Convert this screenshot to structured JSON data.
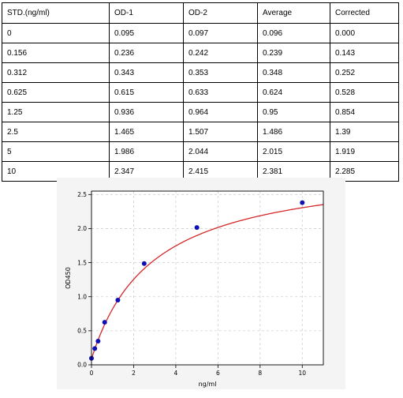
{
  "table": {
    "headers": [
      "STD.(ng/ml)",
      "OD-1",
      "OD-2",
      "Average",
      "Corrected"
    ],
    "rows": [
      [
        "0",
        "0.095",
        "0.097",
        "0.096",
        "0.000"
      ],
      [
        "0.156",
        "0.236",
        "0.242",
        "0.239",
        "0.143"
      ],
      [
        "0.312",
        "0.343",
        "0.353",
        "0.348",
        "0.252"
      ],
      [
        "0.625",
        "0.615",
        "0.633",
        "0.624",
        "0.528"
      ],
      [
        "1.25",
        "0.936",
        "0.964",
        "0.95",
        "0.854"
      ],
      [
        "2.5",
        "1.465",
        "1.507",
        "1.486",
        "1.39"
      ],
      [
        "5",
        "1.986",
        "2.044",
        "2.015",
        "1.919"
      ],
      [
        "10",
        "2.347",
        "2.415",
        "2.381",
        "2.285"
      ]
    ]
  },
  "chart_data": {
    "type": "scatter",
    "xlabel": "ng/ml",
    "ylabel": "OD450",
    "xlim": [
      0,
      11
    ],
    "ylim": [
      0,
      2.55
    ],
    "xticks": [
      "0",
      "2",
      "4",
      "6",
      "8",
      "10"
    ],
    "yticks": [
      "0.0",
      "0.5",
      "1.0",
      "1.5",
      "2.0",
      "2.5"
    ],
    "grid": true,
    "x": [
      0,
      0.156,
      0.312,
      0.625,
      1.25,
      2.5,
      5,
      10
    ],
    "y": [
      0.096,
      0.239,
      0.348,
      0.624,
      0.95,
      1.486,
      2.015,
      2.381
    ],
    "point_color": "#1010b0",
    "curve_color": "#d62728"
  }
}
